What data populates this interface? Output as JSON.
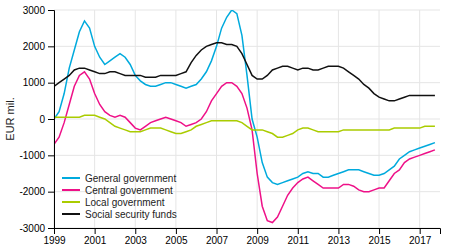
{
  "chart_data": {
    "type": "line",
    "ylabel": "EUR mil.",
    "x": [
      1999.0,
      1999.25,
      1999.5,
      1999.75,
      2000.0,
      2000.25,
      2000.5,
      2000.75,
      2001.0,
      2001.25,
      2001.5,
      2001.75,
      2002.0,
      2002.25,
      2002.5,
      2002.75,
      2003.0,
      2003.25,
      2003.5,
      2003.75,
      2004.0,
      2004.25,
      2004.5,
      2004.75,
      2005.0,
      2005.25,
      2005.5,
      2005.75,
      2006.0,
      2006.25,
      2006.5,
      2006.75,
      2007.0,
      2007.25,
      2007.5,
      2007.75,
      2008.0,
      2008.25,
      2008.5,
      2008.75,
      2009.0,
      2009.25,
      2009.5,
      2009.75,
      2010.0,
      2010.25,
      2010.5,
      2010.75,
      2011.0,
      2011.25,
      2011.5,
      2011.75,
      2012.0,
      2012.25,
      2012.5,
      2012.75,
      2013.0,
      2013.25,
      2013.5,
      2013.75,
      2014.0,
      2014.25,
      2014.5,
      2014.75,
      2015.0,
      2015.25,
      2015.5,
      2015.75,
      2016.0,
      2016.25,
      2016.5,
      2016.75,
      2017.0,
      2017.25,
      2017.5,
      2017.75
    ],
    "series": [
      {
        "name": "General government",
        "color": "#00aadd",
        "values": [
          0,
          200,
          700,
          1400,
          1900,
          2400,
          2700,
          2500,
          2000,
          1700,
          1500,
          1600,
          1700,
          1800,
          1700,
          1500,
          1200,
          1050,
          950,
          900,
          900,
          950,
          1000,
          1000,
          950,
          900,
          850,
          900,
          950,
          1100,
          1300,
          1600,
          2000,
          2500,
          2800,
          3000,
          2900,
          2300,
          1200,
          0,
          -500,
          -1200,
          -1600,
          -1750,
          -1800,
          -1750,
          -1700,
          -1650,
          -1600,
          -1500,
          -1450,
          -1500,
          -1500,
          -1600,
          -1600,
          -1550,
          -1500,
          -1450,
          -1400,
          -1400,
          -1400,
          -1450,
          -1500,
          -1550,
          -1550,
          -1500,
          -1400,
          -1300,
          -1100,
          -1000,
          -900,
          -850,
          -800,
          -750,
          -700,
          -650
        ]
      },
      {
        "name": "Central government",
        "color": "#ee1188",
        "values": [
          -700,
          -500,
          -100,
          400,
          900,
          1200,
          1300,
          1100,
          700,
          400,
          200,
          100,
          50,
          100,
          50,
          -100,
          -250,
          -300,
          -200,
          -100,
          -50,
          0,
          50,
          0,
          -50,
          -100,
          -200,
          -150,
          -100,
          0,
          200,
          500,
          700,
          900,
          1000,
          1000,
          900,
          700,
          300,
          -300,
          -1500,
          -2400,
          -2800,
          -2850,
          -2700,
          -2400,
          -2100,
          -1900,
          -1750,
          -1650,
          -1600,
          -1700,
          -1800,
          -1900,
          -1900,
          -1900,
          -1900,
          -1800,
          -1800,
          -1850,
          -1950,
          -2000,
          -2000,
          -1950,
          -1900,
          -1900,
          -1700,
          -1500,
          -1400,
          -1200,
          -1100,
          -1050,
          -1000,
          -950,
          -900,
          -850
        ]
      },
      {
        "name": "Local government",
        "color": "#aacc00",
        "values": [
          50,
          50,
          50,
          50,
          50,
          50,
          100,
          100,
          100,
          50,
          0,
          -100,
          -200,
          -250,
          -300,
          -350,
          -350,
          -350,
          -300,
          -250,
          -250,
          -250,
          -300,
          -350,
          -400,
          -400,
          -350,
          -300,
          -200,
          -150,
          -100,
          -50,
          -50,
          -50,
          -50,
          -50,
          -50,
          -100,
          -200,
          -300,
          -300,
          -300,
          -350,
          -400,
          -500,
          -500,
          -450,
          -400,
          -300,
          -250,
          -250,
          -300,
          -350,
          -350,
          -350,
          -350,
          -350,
          -300,
          -300,
          -300,
          -300,
          -300,
          -300,
          -300,
          -300,
          -300,
          -300,
          -250,
          -250,
          -250,
          -250,
          -250,
          -250,
          -200,
          -200,
          -200
        ]
      },
      {
        "name": "Social security funds",
        "color": "#111111",
        "values": [
          900,
          1000,
          1100,
          1200,
          1350,
          1400,
          1400,
          1350,
          1300,
          1250,
          1250,
          1300,
          1300,
          1250,
          1200,
          1200,
          1200,
          1200,
          1150,
          1150,
          1150,
          1200,
          1200,
          1200,
          1200,
          1250,
          1300,
          1550,
          1750,
          1900,
          2000,
          2050,
          2100,
          2100,
          2050,
          2050,
          2000,
          1800,
          1500,
          1200,
          1100,
          1100,
          1200,
          1350,
          1400,
          1450,
          1450,
          1400,
          1350,
          1400,
          1400,
          1350,
          1350,
          1400,
          1450,
          1450,
          1450,
          1400,
          1300,
          1200,
          1100,
          950,
          850,
          700,
          600,
          550,
          500,
          500,
          550,
          600,
          650,
          650,
          650,
          650,
          650,
          650
        ]
      }
    ],
    "xlim": [
      1999,
      2018
    ],
    "xticks": [
      1999,
      2001,
      2003,
      2005,
      2007,
      2009,
      2011,
      2013,
      2015,
      2017
    ],
    "ylim": [
      -3000,
      3000
    ],
    "yticks": [
      -3000,
      -2000,
      -1000,
      0,
      1000,
      2000,
      3000
    ],
    "grid": true,
    "legend": "lower left"
  }
}
